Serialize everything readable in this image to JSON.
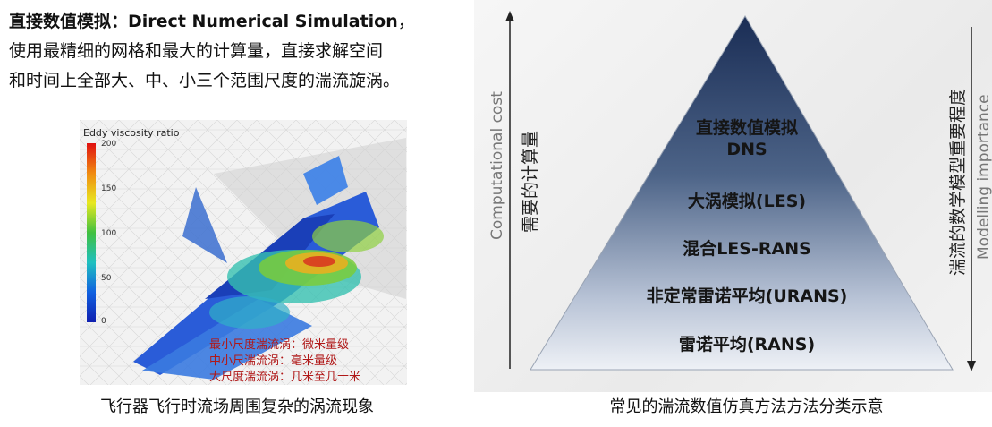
{
  "intro": {
    "term_cn": "直接数值模拟：",
    "term_en": "Direct Numerical Simulation",
    "term_tail": "，",
    "line2": "使用最精细的网格和最大的计算量，直接求解空间",
    "line3": "和时间上全部大、中、小三个范围尺度的湍流旋涡。"
  },
  "simulation": {
    "colorbar_title": "Eddy viscosity ratio",
    "colorbar_ticks": [
      "200",
      "150",
      "100",
      "50",
      "0"
    ],
    "notes": [
      "最小尺度湍流涡：微米量级",
      "中小尺湍流涡：毫米量级",
      "大尺度湍流涡：几米至几十米"
    ]
  },
  "captions": {
    "left": "飞行器飞行时流场周围复杂的涡流现象",
    "right": "常见的湍流数值仿真方法方法分类示意"
  },
  "pyramid": {
    "left_axis_en": "Computational cost",
    "left_axis_cn": "需要的计算量",
    "right_axis_cn": "湍流的数学模型重要程度",
    "right_axis_en": "Modelling importance",
    "levels": [
      {
        "line1": "直接数值模拟",
        "line2": "DNS"
      },
      {
        "line1": "大涡模拟(LES)"
      },
      {
        "line1": "混合LES-RANS"
      },
      {
        "line1": "非定常雷诺平均(URANS)"
      },
      {
        "line1": "雷诺平均(RANS)"
      }
    ]
  },
  "colors": {
    "pyramid_top": "#1a2d55",
    "pyramid_bottom": "#eef1f6",
    "note_red": "#b01818"
  }
}
